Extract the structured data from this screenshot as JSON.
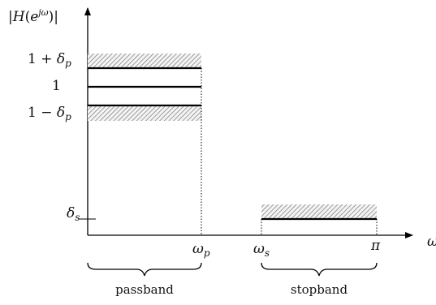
{
  "y_axis": {
    "title_parts": [
      "|",
      "H",
      "(",
      "e",
      "jω",
      ")|"
    ]
  },
  "y_labels": {
    "upper_prefix": "1 + ",
    "upper_var": "δ",
    "upper_sub": "p",
    "one": "1",
    "lower_prefix": "1 − ",
    "lower_var": "δ",
    "lower_sub": "p",
    "stop_var": "δ",
    "stop_sub": "s"
  },
  "x_labels": {
    "wp_var": "ω",
    "wp_sub": "p",
    "ws_var": "ω",
    "ws_sub": "s",
    "pi": "π",
    "axis": "ω"
  },
  "bands": {
    "passband": "passband",
    "stopband": "stopband"
  }
}
